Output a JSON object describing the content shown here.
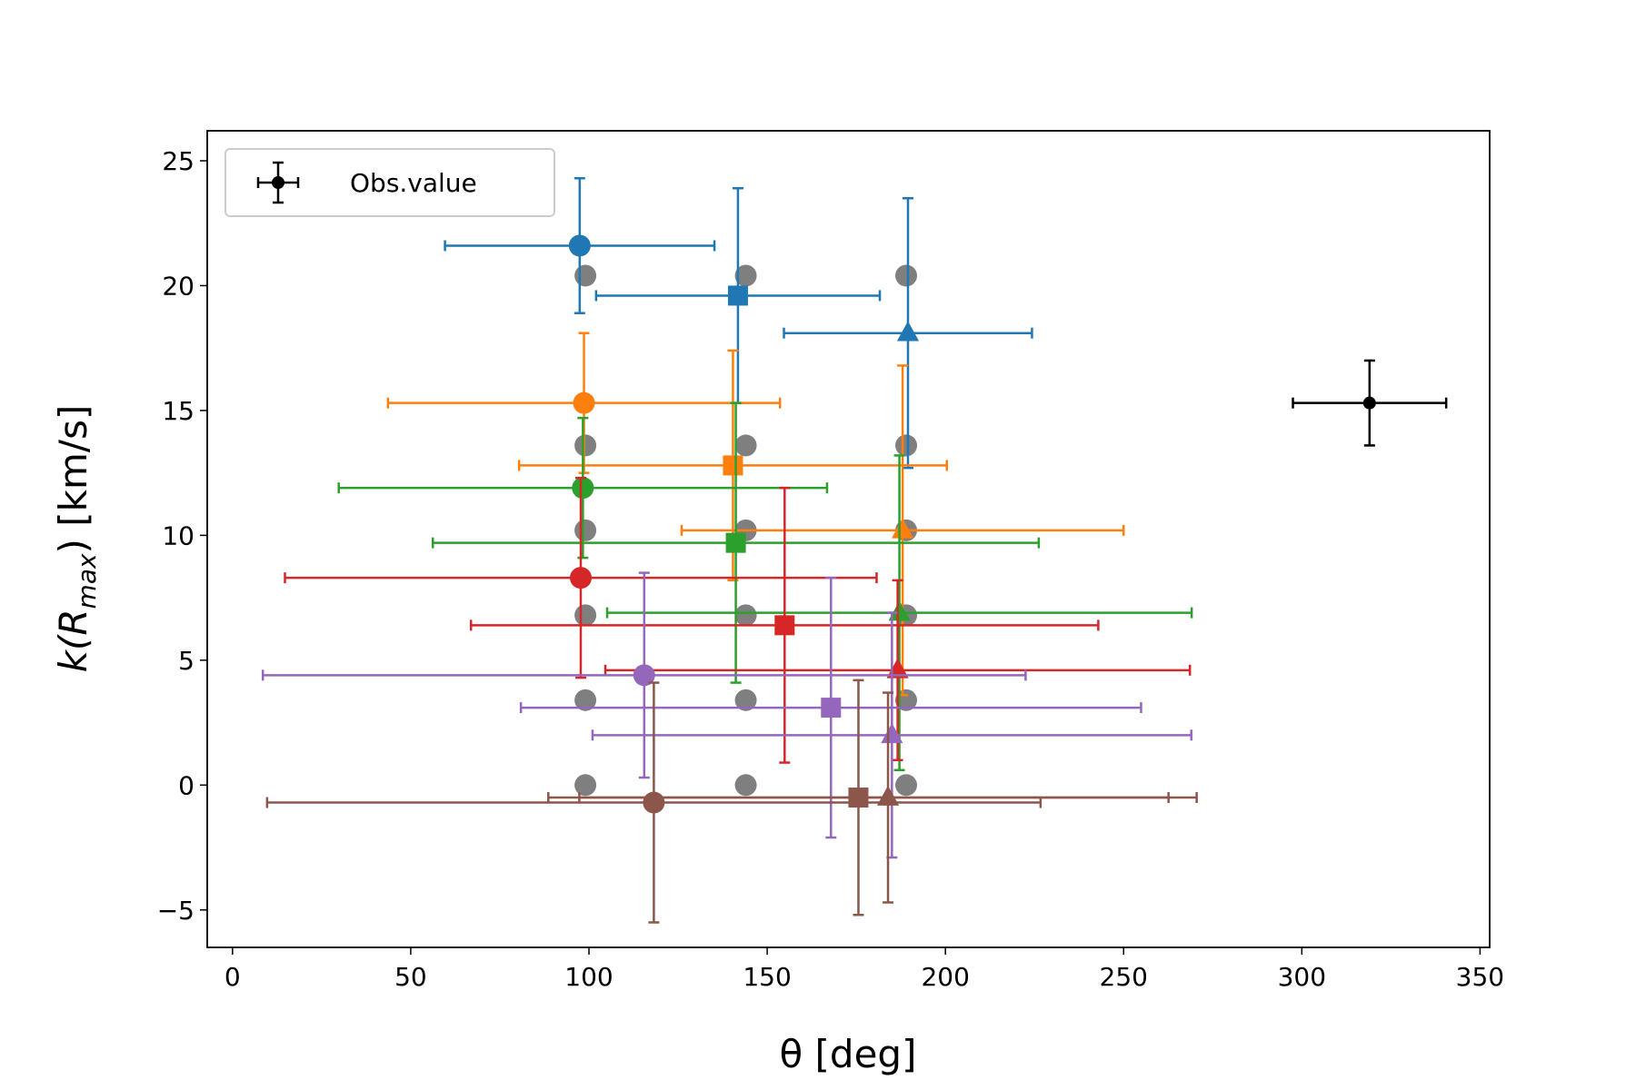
{
  "chart_data": {
    "type": "scatter",
    "xlabel": "θ [deg]",
    "ylabel": {
      "base": "k(R",
      "sub": "max",
      "rest": ") [km/s]"
    },
    "xlim": [
      -7.1,
      352.7
    ],
    "ylim": [
      -6.5,
      26.2
    ],
    "xticks": [
      0,
      50,
      100,
      150,
      200,
      250,
      300,
      350
    ],
    "yticks": [
      {
        "value": -5,
        "label": "−5"
      },
      0,
      5,
      10,
      15,
      20,
      25
    ],
    "legend": "upper left",
    "series": [
      {
        "color": "#7f7f7f",
        "marker": "circle",
        "x": [
          99,
          99,
          99,
          99,
          99,
          99,
          144,
          144,
          144,
          144,
          144,
          144,
          189,
          189,
          189,
          189,
          189,
          189
        ],
        "y": [
          0,
          3.4,
          6.8,
          10.2,
          13.6,
          20.4,
          0,
          3.4,
          6.8,
          10.2,
          13.6,
          20.4,
          0,
          3.4,
          6.8,
          10.2,
          13.6,
          20.4
        ]
      },
      {
        "color": "#1f77b4",
        "marker": "mixed",
        "markers": [
          "circle",
          "square",
          "triangle"
        ],
        "x": [
          97.4,
          141.8,
          189.5
        ],
        "y": [
          21.6,
          19.6,
          18.1
        ],
        "xerr": [
          37.8,
          39.8,
          34.8
        ],
        "yerr": [
          2.7,
          4.3,
          5.4
        ]
      },
      {
        "color": "#ff7f0e",
        "marker": "mixed",
        "markers": [
          "circle",
          "square",
          "triangle"
        ],
        "x": [
          98.6,
          140.4,
          188
        ],
        "y": [
          15.3,
          12.8,
          10.2
        ],
        "xerr": [
          55,
          60,
          62
        ],
        "yerr": [
          2.8,
          4.6,
          6.6
        ]
      },
      {
        "color": "#2ca02c",
        "marker": "mixed",
        "markers": [
          "circle",
          "square",
          "triangle"
        ],
        "x": [
          98.3,
          141.2,
          187.1
        ],
        "y": [
          11.9,
          9.7,
          6.9
        ],
        "xerr": [
          68.5,
          85,
          82
        ],
        "yerr": [
          2.8,
          5.6,
          6.3
        ]
      },
      {
        "color": "#d62728",
        "marker": "mixed",
        "markers": [
          "circle",
          "square",
          "triangle"
        ],
        "x": [
          97.7,
          154.9,
          186.6
        ],
        "y": [
          8.3,
          6.4,
          4.6
        ],
        "xerr": [
          83,
          88,
          82
        ],
        "yerr": [
          4.0,
          5.5,
          3.6
        ]
      },
      {
        "color": "#9467bd",
        "marker": "mixed",
        "markers": [
          "circle",
          "square",
          "triangle"
        ],
        "x": [
          115.5,
          167.9,
          185
        ],
        "y": [
          4.4,
          3.1,
          2.0
        ],
        "xerr": [
          107,
          87,
          84
        ],
        "yerr": [
          4.1,
          5.2,
          4.9
        ]
      },
      {
        "color": "#8c564b",
        "marker": "mixed",
        "markers": [
          "circle",
          "square",
          "triangle"
        ],
        "x": [
          118.2,
          175.6,
          183.9
        ],
        "y": [
          -0.7,
          -0.5,
          -0.5
        ],
        "xerr": [
          108.5,
          87,
          86.6
        ],
        "yerr": [
          4.8,
          4.7,
          4.2
        ]
      },
      {
        "name": "Obs.value",
        "color": "#000000",
        "marker": "dot",
        "x": [
          319
        ],
        "y": [
          15.3
        ],
        "xerr": [
          21.5
        ],
        "yerr": [
          1.7
        ]
      }
    ]
  }
}
